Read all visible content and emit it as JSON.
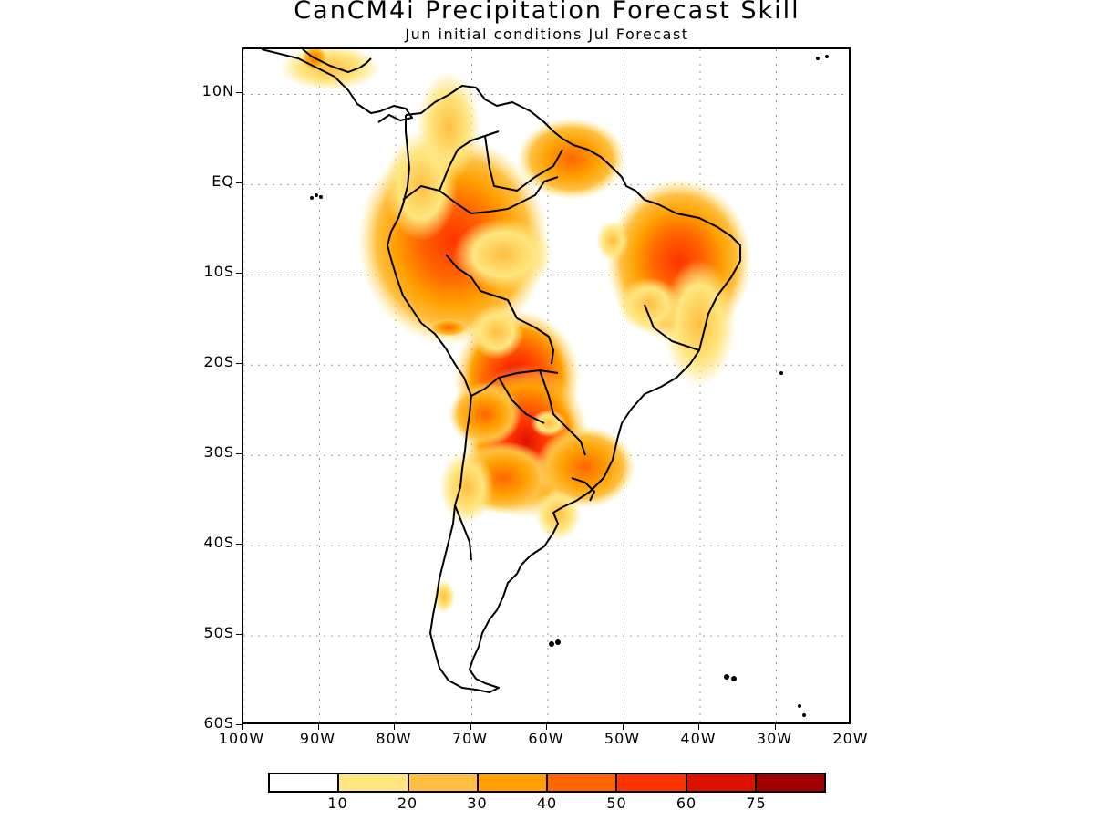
{
  "title": "CanCM4i Precipitation Forecast Skill",
  "subtitle": "Jun initial conditions   Jul Forecast",
  "map": {
    "lon_range": [
      -100,
      -20
    ],
    "lat_range": [
      -60,
      15
    ],
    "y_ticks": [
      {
        "label": "10N",
        "lat": 10
      },
      {
        "label": "EQ",
        "lat": 0
      },
      {
        "label": "10S",
        "lat": -10
      },
      {
        "label": "20S",
        "lat": -20
      },
      {
        "label": "30S",
        "lat": -30
      },
      {
        "label": "40S",
        "lat": -40
      },
      {
        "label": "50S",
        "lat": -50
      },
      {
        "label": "60S",
        "lat": -60
      }
    ],
    "x_ticks": [
      {
        "label": "100W",
        "lon": -100
      },
      {
        "label": "90W",
        "lon": -90
      },
      {
        "label": "80W",
        "lon": -80
      },
      {
        "label": "70W",
        "lon": -70
      },
      {
        "label": "60W",
        "lon": -60
      },
      {
        "label": "50W",
        "lon": -50
      },
      {
        "label": "40W",
        "lon": -40
      },
      {
        "label": "30W",
        "lon": -30
      },
      {
        "label": "20W",
        "lon": -20
      }
    ],
    "grid": "dotted",
    "coastline_color": "#000000"
  },
  "legend": {
    "colors": [
      "#ffffff",
      "#ffe680",
      "#ffbf40",
      "#ffa000",
      "#ff6600",
      "#ff3300",
      "#dd1100",
      "#a00000"
    ],
    "labels": [
      "10",
      "20",
      "30",
      "40",
      "50",
      "60",
      "75"
    ]
  },
  "skill_regions": [
    {
      "lon": -73,
      "lat": -5,
      "level": 5
    },
    {
      "lon": -64,
      "lat": -21,
      "level": 6
    },
    {
      "lon": -66,
      "lat": -24,
      "level": 5
    },
    {
      "lon": -44,
      "lat": -8,
      "level": 5
    },
    {
      "lon": -54,
      "lat": -33,
      "level": 4
    },
    {
      "lon": -60,
      "lat": 7,
      "level": 4
    }
  ]
}
